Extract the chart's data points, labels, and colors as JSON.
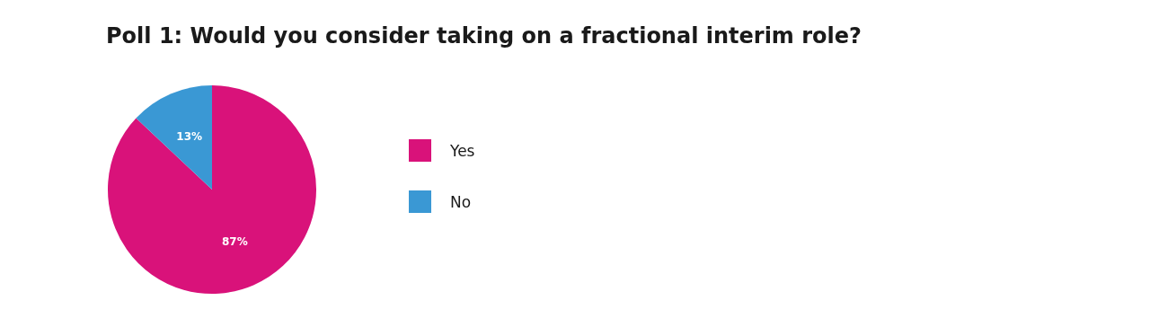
{
  "chart_data": {
    "type": "pie",
    "title": "Poll 1: Would you consider taking on a fractional interim role?",
    "categories": [
      "Yes",
      "No"
    ],
    "values": [
      87,
      13
    ],
    "colors": [
      "#d9127a",
      "#3a98d4"
    ],
    "value_labels": [
      "87%",
      "13%"
    ],
    "legend": "right"
  }
}
